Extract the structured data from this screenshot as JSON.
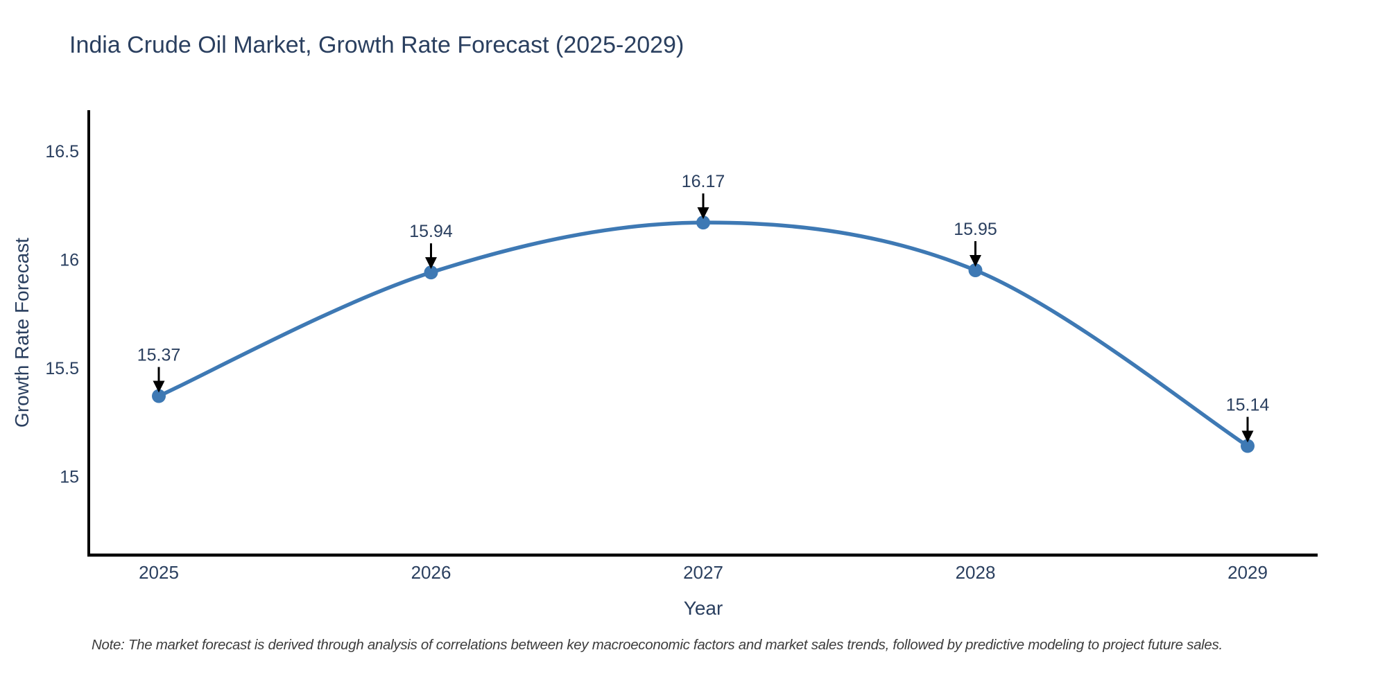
{
  "header": {
    "title": "India Crude Oil Market, Growth Rate Forecast (2025-2029)"
  },
  "footer": {
    "note": "Note: The market forecast is derived through analysis of correlations between key macroeconomic factors and market sales trends, followed by predictive modeling to project future sales."
  },
  "chart_data": {
    "type": "line",
    "title": "India Crude Oil Market, Growth Rate Forecast (2025-2029)",
    "xlabel": "Year",
    "ylabel": "Growth Rate Forecast",
    "categories": [
      "2025",
      "2026",
      "2027",
      "2028",
      "2029"
    ],
    "series": [
      {
        "name": "Growth Rate Forecast",
        "values": [
          15.37,
          15.94,
          16.17,
          15.95,
          15.14
        ]
      }
    ],
    "annotations": [
      "15.37",
      "15.94",
      "16.17",
      "15.95",
      "15.14"
    ],
    "y_ticks": [
      15,
      15.5,
      16,
      16.5
    ],
    "y_tick_labels": [
      "15",
      "15.5",
      "16",
      "16.5"
    ],
    "ylim": [
      14.637,
      16.688
    ],
    "grid": false,
    "legend": "none",
    "line_shape": "spline",
    "colors": {
      "line": "#3e79b4",
      "marker": "#3e79b4",
      "axis": "#000000",
      "text": "#2a3f5f",
      "annotation_arrow": "#000000",
      "note_text": "#3c3c3c"
    }
  }
}
